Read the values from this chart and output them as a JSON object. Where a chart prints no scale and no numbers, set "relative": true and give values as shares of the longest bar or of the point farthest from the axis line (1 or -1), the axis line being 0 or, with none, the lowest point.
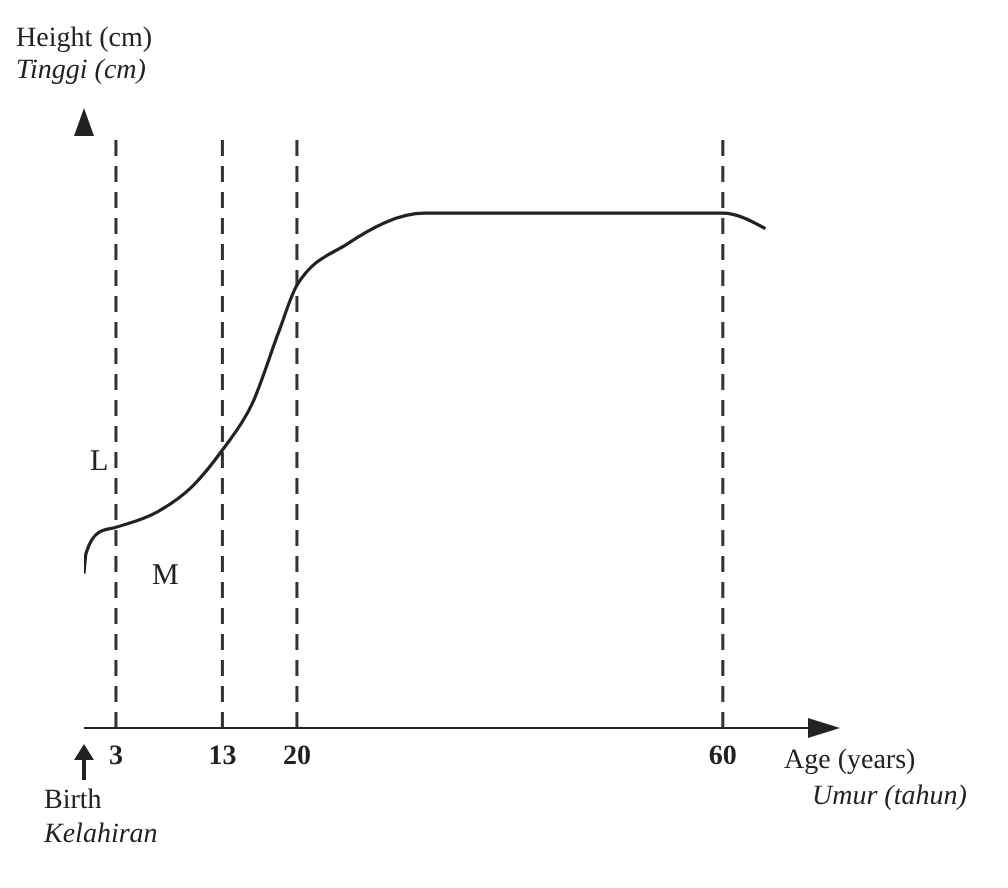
{
  "chart_data": {
    "type": "line",
    "relative": true,
    "xlabel": "Age (years)",
    "xlim": [
      0,
      68
    ],
    "xticks": [
      3,
      13,
      20,
      60
    ],
    "color": "#222222",
    "line_style": "solid",
    "marker": "none",
    "x": [
      0,
      0.2,
      1.4,
      3,
      6.9,
      10.2,
      13,
      15.8,
      18.3,
      20,
      24.7,
      32,
      60,
      64
    ],
    "values": [
      0.3,
      0.34,
      0.38,
      0.39,
      0.42,
      0.47,
      0.54,
      0.63,
      0.77,
      0.86,
      0.94,
      1,
      1,
      0.97
    ],
    "ref_lines": [
      {
        "axis": "x",
        "value": 3,
        "line_style": "dashed"
      },
      {
        "axis": "x",
        "value": 13,
        "line_style": "dashed"
      },
      {
        "axis": "x",
        "value": 20,
        "line_style": "dashed"
      },
      {
        "axis": "x",
        "value": 60,
        "line_style": "dashed"
      }
    ],
    "annotations": [
      "Height (cm)",
      "Tinggi (cm)",
      "Umur (tahun)",
      "Birth",
      "Kelahiran",
      "L",
      "M"
    ]
  }
}
